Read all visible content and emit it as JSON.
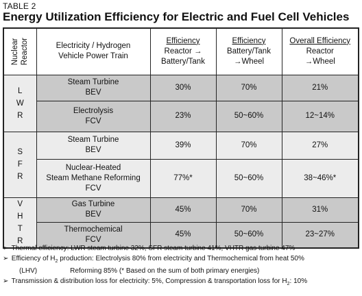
{
  "table_tag": "TABLE 2",
  "title": "Energy Utilization Efficiency for Electric and Fuel Cell Vehicles",
  "header": {
    "reactor": "Nuclear\nReactor",
    "powertrain_line1": "Electricity / Hydrogen",
    "powertrain_line2": "Vehicle Power Train",
    "col1_title": "Efficiency",
    "col1_line1": "Reactor →",
    "col1_line2": "Battery/Tank",
    "col2_title": "Efficiency",
    "col2_line1": "Battery/Tank",
    "col2_line2": "→Wheel",
    "col3_title": "Overall Efficiency",
    "col3_line1": "Reactor",
    "col3_line2": "→Wheel"
  },
  "groups": [
    {
      "letters": [
        "L",
        "W",
        "R"
      ],
      "rows": [
        {
          "pt1": "Steam Turbine",
          "pt2": "BEV",
          "pt3": "",
          "e1": "30%",
          "e2": "70%",
          "e3": "21%"
        },
        {
          "pt1": "Electrolysis",
          "pt2": "FCV",
          "pt3": "",
          "e1": "23%",
          "e2": "50~60%",
          "e3": "12~14%"
        }
      ]
    },
    {
      "letters": [
        "S",
        "F",
        "R"
      ],
      "rows": [
        {
          "pt1": "Steam Turbine",
          "pt2": "BEV",
          "pt3": "",
          "e1": "39%",
          "e2": "70%",
          "e3": "27%"
        },
        {
          "pt1": "Nuclear-Heated",
          "pt2": "Steam Methane Reforming",
          "pt3": "FCV",
          "e1": "77%*",
          "e2": "50~60%",
          "e3": "38~46%*"
        }
      ]
    },
    {
      "letters": [
        "V",
        "H",
        "T",
        "R"
      ],
      "rows": [
        {
          "pt1": "Gas Turbine",
          "pt2": "BEV",
          "pt3": "",
          "e1": "45%",
          "e2": "70%",
          "e3": "31%"
        },
        {
          "pt1": "Thermochemical",
          "pt2": "FCV",
          "pt3": "",
          "e1": "45%",
          "e2": "50~60%",
          "e3": "23~27%"
        }
      ]
    }
  ],
  "notes": {
    "n1": "Thermal efficiency: LWR steam turbine 32%, SFR steam turbine 41%, VHTR gas turbine 47%",
    "n2a": "Efficiency of H",
    "n2sub": "2",
    "n2b": " production: Electrolysis 80% from electricity and Thermochemical from heat 50%",
    "n3a": "(LHV)",
    "n3b": "Reforming 85% (* Based on the sum of both primary energies)",
    "n4a": "Transmission & distribution loss for electricity: 5%, Compression & transportation loss for H",
    "n4sub": "2",
    "n4b": ": 10%",
    "bullet": "➢"
  }
}
